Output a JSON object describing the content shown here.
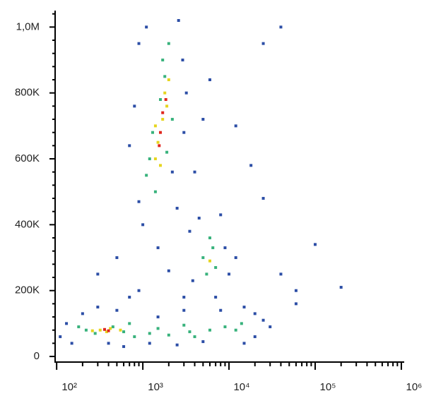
{
  "chart_data": {
    "type": "scatter",
    "xscale": "log",
    "xlim": [
      96,
      1080000
    ],
    "ylim": [
      -17000,
      1050000
    ],
    "xticks": [
      {
        "value": 100,
        "label": "10²"
      },
      {
        "value": 1000,
        "label": "10³"
      },
      {
        "value": 10000,
        "label": "10⁴"
      },
      {
        "value": 100000,
        "label": "10⁵"
      },
      {
        "value": 1000000,
        "label": "10⁶"
      }
    ],
    "yticks": [
      0,
      {
        "value": 200000,
        "label": "200K"
      },
      {
        "value": 400000,
        "label": "400K"
      },
      {
        "value": 600000,
        "label": "600K"
      },
      {
        "value": 800000,
        "label": "800K"
      },
      {
        "value": 1000000,
        "label": "1,0M"
      }
    ],
    "series": [
      {
        "color": "#2c4ea6",
        "x": [
          900,
          1100,
          2600,
          2900,
          3200,
          800,
          700,
          3000,
          4000,
          900,
          1000,
          2500,
          3500,
          1500,
          2000,
          900,
          3000,
          4500,
          8000,
          9000,
          10000,
          3800,
          7000,
          12000,
          15000,
          25000,
          30000,
          20000,
          60000,
          200000,
          100000,
          40000,
          25000,
          18000,
          12000,
          6000,
          5000,
          110,
          130,
          200,
          150,
          300,
          500,
          600,
          1200,
          2500,
          5000,
          8000,
          15000,
          500,
          700,
          40000,
          25000,
          300,
          1500,
          3000,
          400,
          60000,
          20000,
          2200
        ],
        "y": [
          950000,
          1000000,
          1020000,
          900000,
          800000,
          760000,
          640000,
          680000,
          560000,
          470000,
          400000,
          450000,
          380000,
          330000,
          260000,
          200000,
          180000,
          420000,
          430000,
          330000,
          250000,
          230000,
          180000,
          300000,
          150000,
          110000,
          90000,
          60000,
          160000,
          210000,
          340000,
          250000,
          480000,
          580000,
          700000,
          840000,
          720000,
          60000,
          100000,
          130000,
          40000,
          150000,
          140000,
          30000,
          40000,
          35000,
          45000,
          140000,
          40000,
          300000,
          180000,
          1000000,
          950000,
          250000,
          120000,
          140000,
          40000,
          200000,
          130000,
          560000
        ]
      },
      {
        "color": "#38b27c",
        "x": [
          1200,
          1400,
          1800,
          2000,
          1600,
          1300,
          2200,
          1100,
          1700,
          1900,
          5000,
          6500,
          5500,
          7000,
          6000,
          220,
          280,
          450,
          600,
          800,
          1200,
          2000,
          3500,
          6000,
          9000,
          14000,
          4000,
          1500,
          180,
          700,
          3000,
          12000
        ],
        "y": [
          600000,
          500000,
          850000,
          950000,
          780000,
          680000,
          720000,
          550000,
          900000,
          620000,
          300000,
          330000,
          250000,
          270000,
          360000,
          80000,
          70000,
          90000,
          75000,
          60000,
          70000,
          65000,
          75000,
          80000,
          90000,
          100000,
          60000,
          85000,
          90000,
          100000,
          95000,
          80000
        ]
      },
      {
        "color": "#e6d51f",
        "x": [
          1500,
          1700,
          1800,
          1400,
          1900,
          1600,
          2000,
          320,
          380,
          420,
          260,
          6000,
          550,
          1400
        ],
        "y": [
          650000,
          720000,
          800000,
          600000,
          760000,
          580000,
          840000,
          80000,
          75000,
          85000,
          78000,
          290000,
          80000,
          700000
        ]
      },
      {
        "color": "#e0261c",
        "x": [
          1700,
          1600,
          1850,
          1550,
          360,
          400
        ],
        "y": [
          740000,
          680000,
          780000,
          640000,
          82000,
          78000
        ]
      }
    ]
  }
}
